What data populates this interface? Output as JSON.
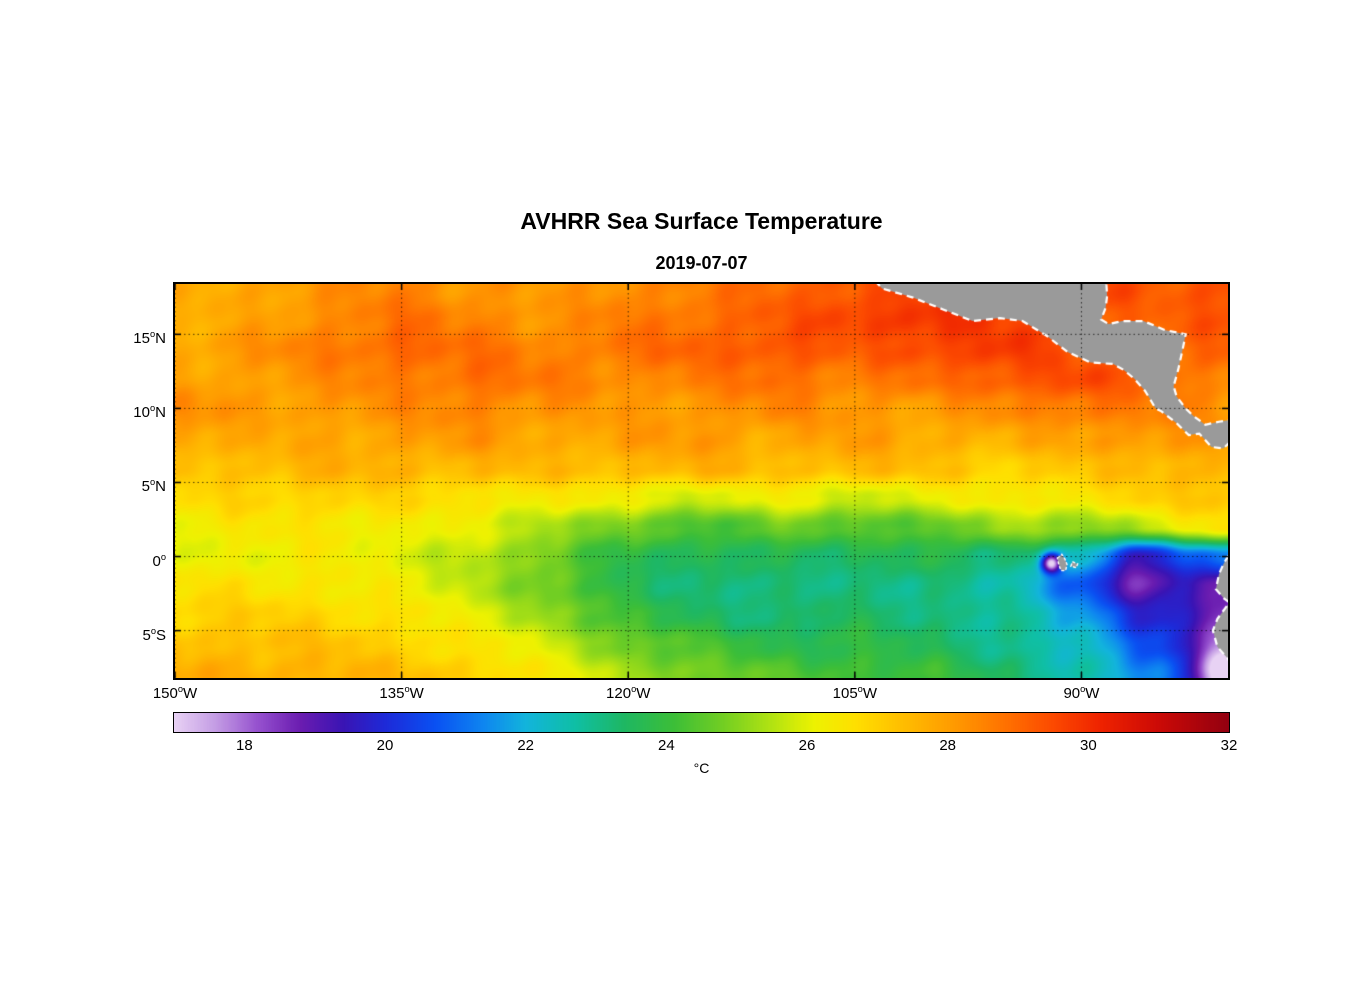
{
  "chart_data": {
    "type": "heatmap",
    "title": "AVHRR Sea Surface Temperature",
    "subtitle": "2019-07-07",
    "unit": "°C",
    "lon_range": [
      -150,
      -80.3
    ],
    "lat_range": [
      -8.2,
      18.4
    ],
    "x_ticks": [
      {
        "label_value": "150",
        "hemisphere": "W",
        "lon": -150
      },
      {
        "label_value": "135",
        "hemisphere": "W",
        "lon": -135
      },
      {
        "label_value": "120",
        "hemisphere": "W",
        "lon": -120
      },
      {
        "label_value": "105",
        "hemisphere": "W",
        "lon": -105
      },
      {
        "label_value": "90",
        "hemisphere": "W",
        "lon": -90
      }
    ],
    "y_ticks": [
      {
        "label_value": "15",
        "hemisphere": "N",
        "lat": 15
      },
      {
        "label_value": "10",
        "hemisphere": "N",
        "lat": 10
      },
      {
        "label_value": "5",
        "hemisphere": "N",
        "lat": 5
      },
      {
        "label_value": "0",
        "hemisphere": "",
        "lat": 0
      },
      {
        "label_value": "5",
        "hemisphere": "S",
        "lat": -5
      }
    ],
    "gridlines": {
      "lons": [
        -150,
        -135,
        -120,
        -105,
        -90
      ],
      "lats": [
        15,
        10,
        5,
        0,
        -5
      ]
    },
    "colorbar_range": [
      17,
      32
    ],
    "colorbar_ticks": [
      18,
      20,
      22,
      24,
      26,
      28,
      30,
      32
    ],
    "colormap_stops": [
      [
        17.0,
        "#E8D2F4"
      ],
      [
        17.6,
        "#C39BE4"
      ],
      [
        18.2,
        "#9550CE"
      ],
      [
        18.8,
        "#6A1CB0"
      ],
      [
        19.4,
        "#3A14B4"
      ],
      [
        20.0,
        "#1E2AD8"
      ],
      [
        20.7,
        "#0A50F2"
      ],
      [
        21.4,
        "#0E86F0"
      ],
      [
        22.0,
        "#12B4DC"
      ],
      [
        22.7,
        "#0FBFA5"
      ],
      [
        23.4,
        "#1EB763"
      ],
      [
        24.1,
        "#3CBE38"
      ],
      [
        24.8,
        "#72CE23"
      ],
      [
        25.5,
        "#B2E312"
      ],
      [
        26.1,
        "#EDF201"
      ],
      [
        26.7,
        "#FFDF00"
      ],
      [
        27.4,
        "#FFBC00"
      ],
      [
        28.1,
        "#FF9A00"
      ],
      [
        28.8,
        "#FF7300"
      ],
      [
        29.5,
        "#FC4A00"
      ],
      [
        30.2,
        "#EE2200"
      ],
      [
        31.0,
        "#CC0A06"
      ],
      [
        32.0,
        "#930010"
      ]
    ],
    "land_color": "#9A9A9A",
    "coast_color": "#FFFFFF",
    "grid": {
      "lons": [
        -150,
        -145,
        -140,
        -135,
        -130,
        -125,
        -120,
        -115,
        -110,
        -105,
        -100,
        -95,
        -90,
        -85,
        -80
      ],
      "lats": [
        18,
        16,
        14,
        12,
        10,
        8,
        6,
        4,
        2,
        0,
        -2,
        -4,
        -6,
        -8
      ],
      "sst_c": [
        [
          27.6,
          27.9,
          28.2,
          28.5,
          28.2,
          28.0,
          28.4,
          28.6,
          29.0,
          29.4,
          29.6,
          29.8,
          29.6,
          29.2,
          29.5
        ],
        [
          27.5,
          27.8,
          28.4,
          28.8,
          28.5,
          28.2,
          28.6,
          28.9,
          29.2,
          29.7,
          30.0,
          29.6,
          29.2,
          29.0,
          29.4
        ],
        [
          27.8,
          28.2,
          28.6,
          29.1,
          28.8,
          28.5,
          28.8,
          29.1,
          29.4,
          29.1,
          29.6,
          29.9,
          29.1,
          28.8,
          29.1
        ],
        [
          27.8,
          28.0,
          28.3,
          28.6,
          28.9,
          28.6,
          28.4,
          28.6,
          28.9,
          28.6,
          28.8,
          29.3,
          29.6,
          28.8,
          28.6
        ],
        [
          28.4,
          28.0,
          28.1,
          28.3,
          28.5,
          28.2,
          28.0,
          28.2,
          28.4,
          28.2,
          28.0,
          28.4,
          28.8,
          28.6,
          28.2
        ],
        [
          28.0,
          27.7,
          27.8,
          28.0,
          28.1,
          27.8,
          28.0,
          28.1,
          27.8,
          28.0,
          27.8,
          27.6,
          28.0,
          28.2,
          28.0
        ],
        [
          27.3,
          27.4,
          27.6,
          27.6,
          27.5,
          27.4,
          27.5,
          27.6,
          27.4,
          27.5,
          27.3,
          27.0,
          27.2,
          27.5,
          27.7
        ],
        [
          26.7,
          26.9,
          27.0,
          26.8,
          26.6,
          26.4,
          26.2,
          25.9,
          26.2,
          25.8,
          26.1,
          26.4,
          26.6,
          27.0,
          27.3
        ],
        [
          26.3,
          26.4,
          26.5,
          26.3,
          26.0,
          25.4,
          24.7,
          24.2,
          24.8,
          24.3,
          24.6,
          25.2,
          25.1,
          26.0,
          26.6
        ],
        [
          26.1,
          26.2,
          26.3,
          26.0,
          25.5,
          24.7,
          23.8,
          23.4,
          23.6,
          23.4,
          23.6,
          23.3,
          22.3,
          20.6,
          21.4
        ],
        [
          26.6,
          26.6,
          26.5,
          26.2,
          25.6,
          24.6,
          23.6,
          23.2,
          23.0,
          23.2,
          23.0,
          22.6,
          21.0,
          19.6,
          18.9
        ],
        [
          27.0,
          27.0,
          26.9,
          26.6,
          26.0,
          25.2,
          24.0,
          23.5,
          23.2,
          23.4,
          23.2,
          22.8,
          21.8,
          20.0,
          18.4
        ],
        [
          27.4,
          27.4,
          27.3,
          27.0,
          26.5,
          25.8,
          24.8,
          24.2,
          23.8,
          23.8,
          23.5,
          23.0,
          22.2,
          20.6,
          17.9
        ],
        [
          27.7,
          27.7,
          27.6,
          27.4,
          27.0,
          26.3,
          25.4,
          24.8,
          24.4,
          24.2,
          24.0,
          23.4,
          22.6,
          21.2,
          17.6
        ]
      ]
    },
    "cold_anomalies": [
      {
        "lon": -92.0,
        "lat": -0.45,
        "amp": -5.5,
        "r": 0.45
      },
      {
        "lon": -86.8,
        "lat": -1.0,
        "amp": -1.6,
        "r": 1.6
      },
      {
        "lon": -80.4,
        "lat": -7.8,
        "amp": -1.6,
        "r": 1.1
      }
    ],
    "land_polygons": {
      "central_america": [
        [
          -104.2,
          19.2
        ],
        [
          -103.2,
          18.1
        ],
        [
          -101.2,
          17.5
        ],
        [
          -99.2,
          16.7
        ],
        [
          -97.2,
          15.9
        ],
        [
          -95.4,
          16.1
        ],
        [
          -93.9,
          15.9
        ],
        [
          -92.3,
          14.9
        ],
        [
          -90.9,
          13.8
        ],
        [
          -89.4,
          13.1
        ],
        [
          -87.9,
          13.0
        ],
        [
          -87.2,
          12.6
        ],
        [
          -86.5,
          12.0
        ],
        [
          -85.8,
          11.2
        ],
        [
          -85.5,
          10.7
        ],
        [
          -85.1,
          10.0
        ],
        [
          -84.7,
          9.8
        ],
        [
          -83.7,
          9.0
        ],
        [
          -82.9,
          8.2
        ],
        [
          -82.2,
          8.3
        ],
        [
          -81.4,
          7.4
        ],
        [
          -80.6,
          7.3
        ],
        [
          -80.1,
          7.8
        ],
        [
          -79.6,
          8.6
        ],
        [
          -79.4,
          9.0
        ],
        [
          -80.3,
          9.2
        ],
        [
          -80.9,
          9.1
        ],
        [
          -81.8,
          8.9
        ],
        [
          -82.6,
          9.5
        ],
        [
          -83.1,
          10.0
        ],
        [
          -83.7,
          10.8
        ],
        [
          -83.9,
          11.5
        ],
        [
          -83.6,
          12.6
        ],
        [
          -83.3,
          14.0
        ],
        [
          -83.1,
          15.0
        ],
        [
          -84.5,
          15.3
        ],
        [
          -85.9,
          15.9
        ],
        [
          -87.3,
          15.9
        ],
        [
          -88.2,
          15.7
        ],
        [
          -88.7,
          16.0
        ],
        [
          -88.4,
          16.8
        ],
        [
          -88.3,
          17.6
        ],
        [
          -88.4,
          19.2
        ]
      ],
      "south_america": [
        [
          -79.6,
          1.5
        ],
        [
          -80.1,
          0.8
        ],
        [
          -80.2,
          0.2
        ],
        [
          -80.6,
          -0.5
        ],
        [
          -80.9,
          -1.2
        ],
        [
          -81.1,
          -2.2
        ],
        [
          -80.6,
          -2.8
        ],
        [
          -80.2,
          -3.1
        ],
        [
          -81.0,
          -4.2
        ],
        [
          -81.3,
          -5.0
        ],
        [
          -81.0,
          -6.1
        ],
        [
          -80.3,
          -6.9
        ],
        [
          -79.8,
          -7.9
        ],
        [
          -79.3,
          -9.0
        ],
        [
          -78.0,
          -9.0
        ],
        [
          -78.0,
          1.5
        ]
      ],
      "galapagos": [
        [
          [
            -91.6,
            -0.1
          ],
          [
            -91.3,
            0.15
          ],
          [
            -91.1,
            -0.15
          ],
          [
            -90.95,
            -0.55
          ],
          [
            -91.05,
            -0.95
          ],
          [
            -91.35,
            -0.95
          ],
          [
            -91.5,
            -0.55
          ]
        ],
        [
          [
            -90.6,
            -0.35
          ],
          [
            -90.25,
            -0.5
          ],
          [
            -90.35,
            -0.75
          ],
          [
            -90.7,
            -0.65
          ]
        ]
      ]
    }
  }
}
